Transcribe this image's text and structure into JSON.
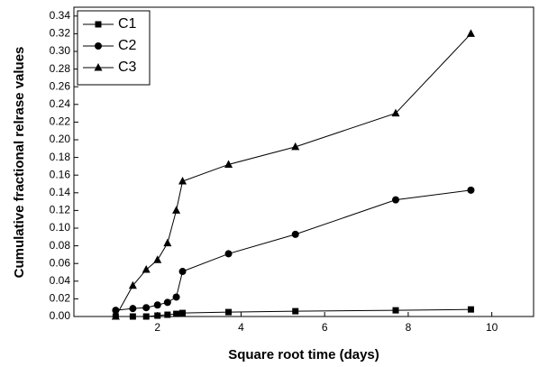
{
  "chart_data": {
    "type": "line",
    "xlabel": "Square root time (days)",
    "ylabel": "Cumulative fractional relrase values",
    "xlim": [
      0,
      11
    ],
    "xticks": [
      2,
      4,
      6,
      8,
      10
    ],
    "ylim": [
      0,
      0.35
    ],
    "yticks": [
      {
        "value": 0,
        "label": "0.00"
      },
      {
        "value": 0.02,
        "label": "0.02"
      },
      {
        "value": 0.04,
        "label": "0.04"
      },
      {
        "value": 0.06,
        "label": "0.06"
      },
      {
        "value": 0.08,
        "label": "0.08"
      },
      {
        "value": 0.1,
        "label": "0.10"
      },
      {
        "value": 0.12,
        "label": "0.12"
      },
      {
        "value": 0.14,
        "label": "0.14"
      },
      {
        "value": 0.16,
        "label": "0.16"
      },
      {
        "value": 0.18,
        "label": "0.18"
      },
      {
        "value": 0.2,
        "label": "0.20"
      },
      {
        "value": 0.22,
        "label": "0.22"
      },
      {
        "value": 0.24,
        "label": "0.24"
      },
      {
        "value": 0.26,
        "label": "0.26"
      },
      {
        "value": 0.28,
        "label": "0.28"
      },
      {
        "value": 0.3,
        "label": "0.30"
      },
      {
        "value": 0.32,
        "label": "0.32"
      },
      {
        "value": 0.34,
        "label": "0.34"
      }
    ],
    "x": [
      1,
      1.41,
      1.73,
      2,
      2.24,
      2.45,
      2.6,
      3.7,
      5.3,
      7.7,
      9.5
    ],
    "legend": "upper left",
    "series": [
      {
        "name": "C1",
        "color": "#000000",
        "marker": "square",
        "values": [
          0,
          0,
          0,
          0.001,
          0.002,
          0.003,
          0.004,
          0.005,
          0.006,
          0.007,
          0.008
        ]
      },
      {
        "name": "C2",
        "color": "#000000",
        "marker": "circle",
        "values": [
          0.007,
          0.009,
          0.01,
          0.013,
          0.016,
          0.022,
          0.051,
          0.071,
          0.093,
          0.132,
          0.143
        ]
      },
      {
        "name": "C3",
        "color": "#000000",
        "marker": "triangle",
        "values": [
          0,
          0.035,
          0.053,
          0.064,
          0.083,
          0.12,
          0.153,
          0.172,
          0.192,
          0.23,
          0.32
        ]
      }
    ]
  }
}
